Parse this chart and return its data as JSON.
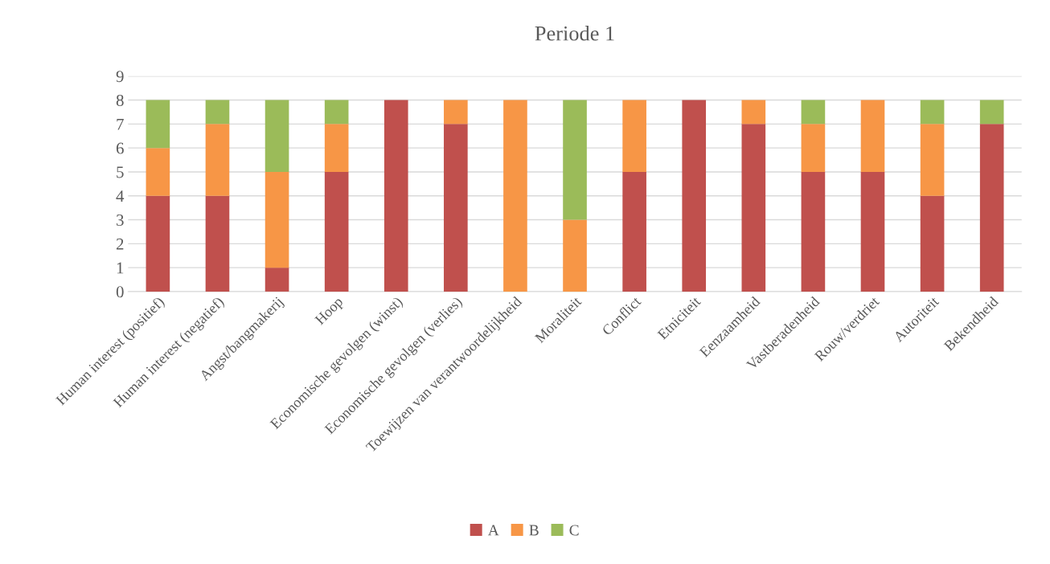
{
  "chart_data": {
    "type": "bar",
    "title": "Periode 1",
    "stacked": true,
    "categories": [
      "Human interest (positief)",
      "Human interest (negatief)",
      "Angst/bangmakerij",
      "Hoop",
      "Economische gevolgen (winst)",
      "Economische gevolgen (verlies)",
      "Toewijzen van verantwoordelijkheid",
      "Moraliteit",
      "Conflict",
      "Etniciteit",
      "Eenzaamheid",
      "Vastberadenheid",
      "Rouw/verdriet",
      "Autoriteit",
      "Bekendheid"
    ],
    "series": [
      {
        "name": "A",
        "color": "#c0504d",
        "values": [
          4,
          4,
          1,
          5,
          8,
          7,
          null,
          null,
          5,
          8,
          7,
          5,
          5,
          4,
          7
        ]
      },
      {
        "name": "B",
        "color": "#f79646",
        "values": [
          2,
          3,
          4,
          2,
          null,
          1,
          8,
          3,
          3,
          null,
          1,
          2,
          3,
          3,
          null
        ]
      },
      {
        "name": "C",
        "color": "#9bbb59",
        "values": [
          2,
          1,
          3,
          1,
          null,
          null,
          null,
          5,
          null,
          null,
          null,
          1,
          null,
          1,
          1
        ]
      }
    ],
    "ylim": [
      0,
      9
    ],
    "yticks": [
      0,
      1,
      2,
      3,
      4,
      5,
      6,
      7,
      8,
      9
    ],
    "grid": "y",
    "legend": "bottom"
  }
}
